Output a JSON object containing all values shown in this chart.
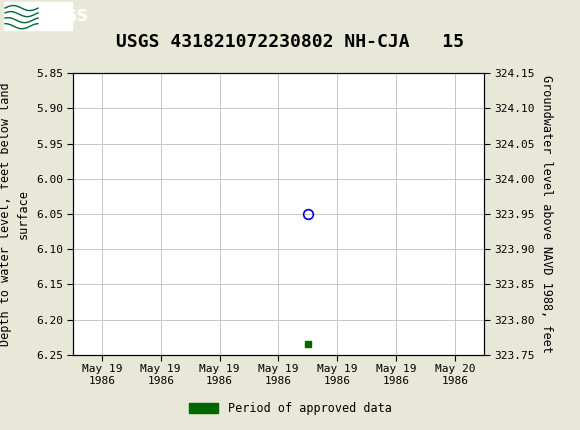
{
  "title": "USGS 431821072230802 NH-CJA   15",
  "ylabel_left": "Depth to water level, feet below land\nsurface",
  "ylabel_right": "Groundwater level above NAVD 1988, feet",
  "ylim_left": [
    6.25,
    5.85
  ],
  "ylim_right": [
    323.75,
    324.15
  ],
  "yticks_left": [
    5.85,
    5.9,
    5.95,
    6.0,
    6.05,
    6.1,
    6.15,
    6.2,
    6.25
  ],
  "yticks_right": [
    323.75,
    323.8,
    323.85,
    323.9,
    323.95,
    324.0,
    324.05,
    324.1,
    324.15
  ],
  "ytick_labels_left": [
    "5.85",
    "5.90",
    "5.95",
    "6.00",
    "6.05",
    "6.10",
    "6.15",
    "6.20",
    "6.25"
  ],
  "ytick_labels_right": [
    "323.75",
    "323.80",
    "323.85",
    "323.90",
    "323.95",
    "324.00",
    "324.05",
    "324.10",
    "324.15"
  ],
  "header_color": "#006633",
  "background_color": "#e8e8d8",
  "plot_bg_color": "#ffffff",
  "grid_color": "#c8c8c8",
  "data_point_x": 3.5,
  "data_point_y": 6.05,
  "data_point_color": "#0000cc",
  "marker_x": 3.5,
  "marker_y": 6.235,
  "marker_color": "#006600",
  "legend_label": "Period of approved data",
  "x_tick_labels": [
    "May 19\n1986",
    "May 19\n1986",
    "May 19\n1986",
    "May 19\n1986",
    "May 19\n1986",
    "May 19\n1986",
    "May 20\n1986"
  ],
  "x_positions": [
    0,
    1,
    2,
    3,
    4,
    5,
    6
  ],
  "xlim": [
    -0.5,
    6.5
  ],
  "title_fontsize": 13,
  "axis_label_fontsize": 8.5,
  "tick_fontsize": 8
}
